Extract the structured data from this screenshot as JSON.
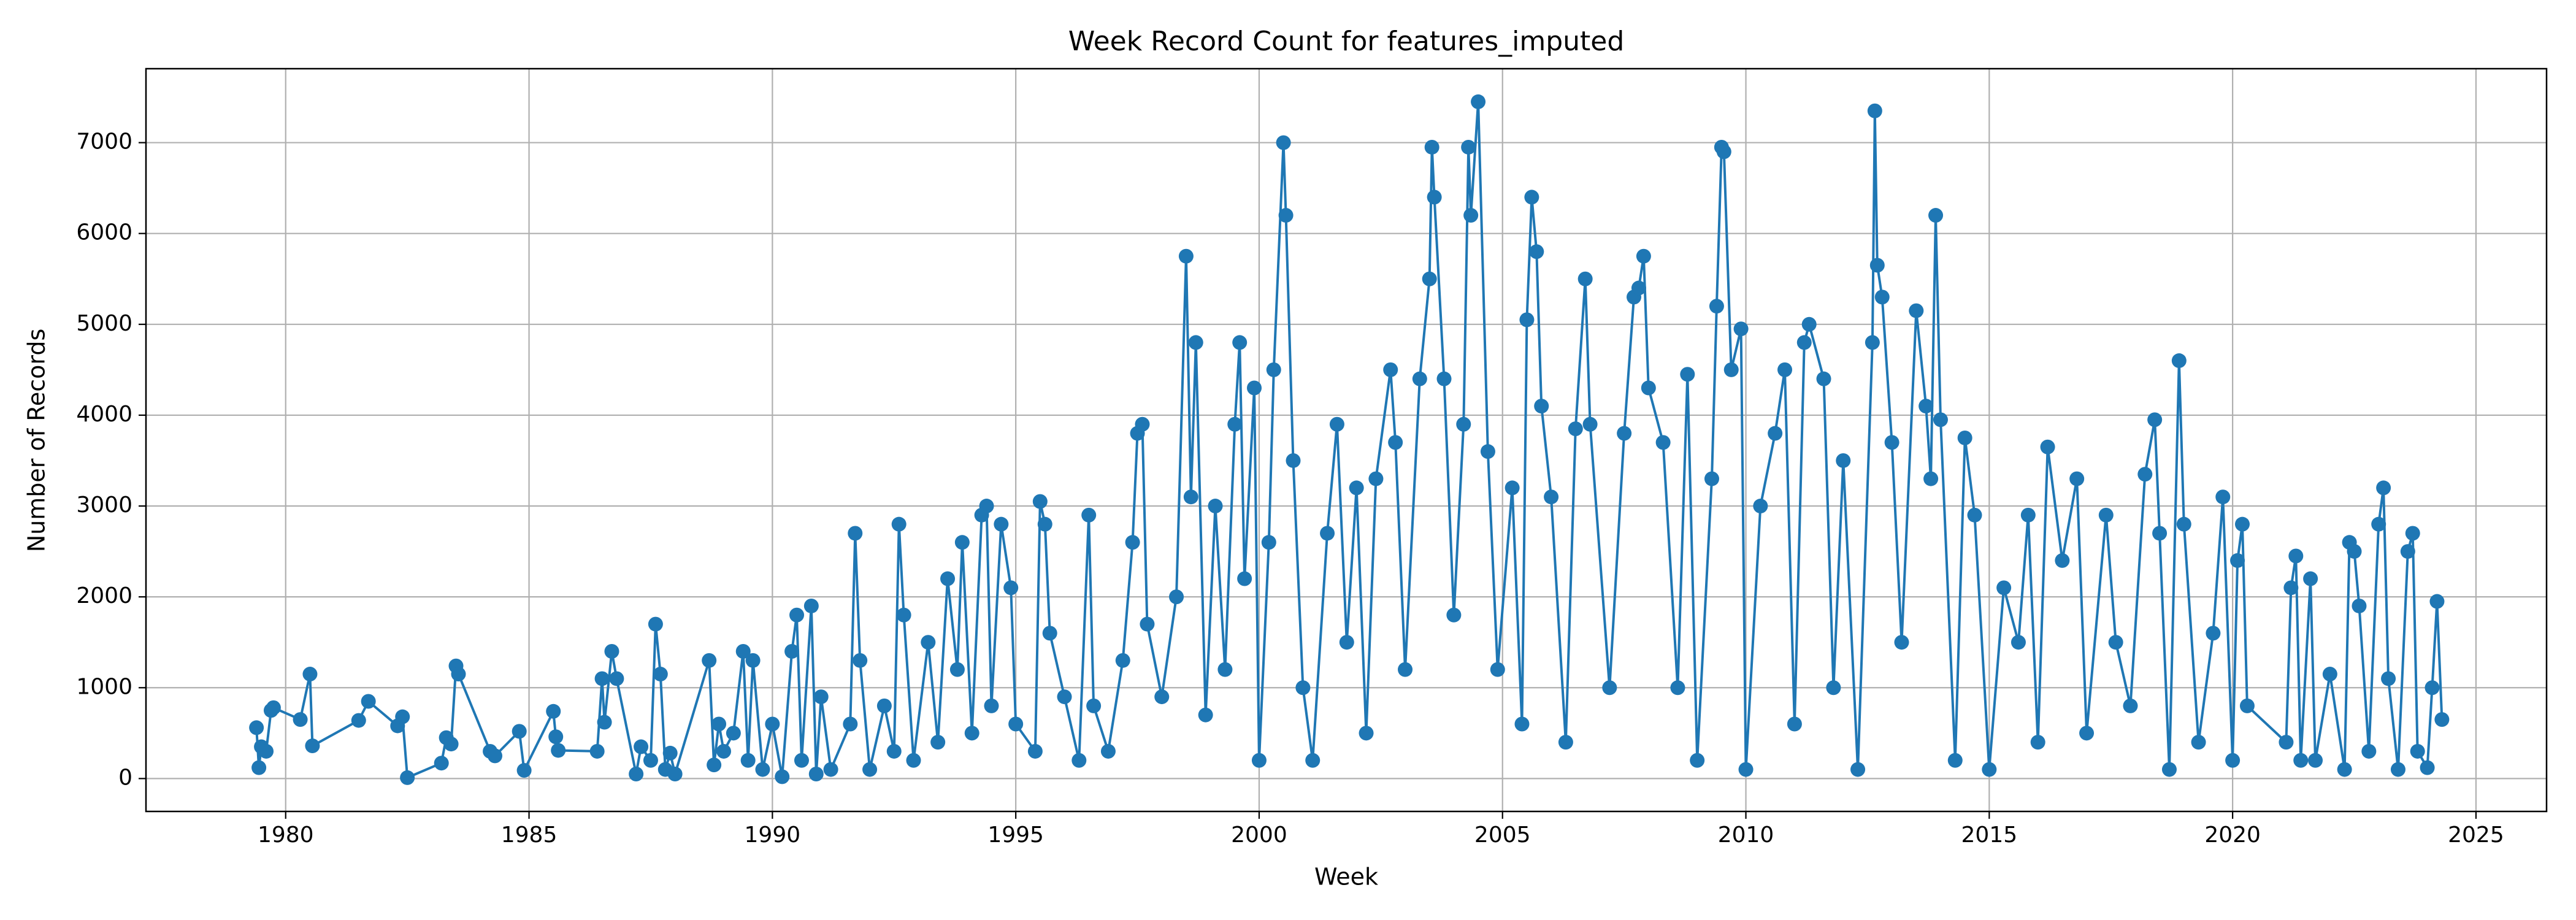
{
  "chart_data": {
    "type": "line",
    "title": "Week Record Count for features_imputed",
    "xlabel": "Week",
    "ylabel": "Number of Records",
    "color": "#1f77b4",
    "grid": true,
    "xlim": [
      1977.13,
      2026.45
    ],
    "ylim": [
      -362,
      7814
    ],
    "xticks": [
      1980,
      1985,
      1990,
      1995,
      2000,
      2005,
      2010,
      2015,
      2020,
      2025
    ],
    "yticks": [
      0,
      1000,
      2000,
      3000,
      4000,
      5000,
      6000,
      7000
    ],
    "x": [
      1979.4,
      1979.45,
      1979.5,
      1979.6,
      1979.7,
      1979.75,
      1980.3,
      1980.5,
      1980.55,
      1981.5,
      1981.7,
      1982.3,
      1982.4,
      1982.5,
      1983.2,
      1983.3,
      1983.4,
      1983.5,
      1983.55,
      1984.2,
      1984.3,
      1984.8,
      1984.9,
      1985.5,
      1985.55,
      1985.6,
      1986.4,
      1986.5,
      1986.55,
      1986.7,
      1986.8,
      1987.2,
      1987.3,
      1987.5,
      1987.6,
      1987.7,
      1987.8,
      1987.9,
      1988.0,
      1988.7,
      1988.8,
      1988.9,
      1989.0,
      1989.2,
      1989.4,
      1989.5,
      1989.6,
      1989.8,
      1990.0,
      1990.2,
      1990.4,
      1990.5,
      1990.6,
      1990.8,
      1990.9,
      1991.0,
      1991.2,
      1991.6,
      1991.7,
      1991.8,
      1992.0,
      1992.3,
      1992.5,
      1992.6,
      1992.7,
      1992.9,
      1993.2,
      1993.4,
      1993.6,
      1993.8,
      1993.9,
      1994.1,
      1994.3,
      1994.4,
      1994.5,
      1994.7,
      1994.9,
      1995.0,
      1995.4,
      1995.5,
      1995.6,
      1995.7,
      1996.0,
      1996.3,
      1996.5,
      1996.6,
      1996.9,
      1997.2,
      1997.4,
      1997.5,
      1997.6,
      1997.7,
      1998.0,
      1998.3,
      1998.5,
      1998.6,
      1998.7,
      1998.9,
      1999.1,
      1999.3,
      1999.5,
      1999.6,
      1999.7,
      1999.9,
      2000.0,
      2000.2,
      2000.3,
      2000.5,
      2000.55,
      2000.7,
      2000.9,
      2001.1,
      2001.4,
      2001.6,
      2001.8,
      2002.0,
      2002.2,
      2002.4,
      2002.7,
      2002.8,
      2003.0,
      2003.3,
      2003.5,
      2003.55,
      2003.6,
      2003.8,
      2004.0,
      2004.2,
      2004.3,
      2004.35,
      2004.5,
      2004.7,
      2004.9,
      2005.2,
      2005.4,
      2005.5,
      2005.6,
      2005.7,
      2005.8,
      2006.0,
      2006.3,
      2006.5,
      2006.7,
      2006.8,
      2007.2,
      2007.5,
      2007.7,
      2007.8,
      2007.9,
      2008.0,
      2008.3,
      2008.6,
      2008.8,
      2009.0,
      2009.3,
      2009.4,
      2009.5,
      2009.55,
      2009.7,
      2009.9,
      2010.0,
      2010.3,
      2010.6,
      2010.8,
      2011.0,
      2011.2,
      2011.3,
      2011.6,
      2011.8,
      2012.0,
      2012.3,
      2012.6,
      2012.65,
      2012.7,
      2012.8,
      2013.0,
      2013.2,
      2013.5,
      2013.7,
      2013.8,
      2013.9,
      2014.0,
      2014.3,
      2014.5,
      2014.7,
      2015.0,
      2015.3,
      2015.6,
      2015.8,
      2016.0,
      2016.2,
      2016.5,
      2016.8,
      2017.0,
      2017.4,
      2017.6,
      2017.9,
      2018.2,
      2018.4,
      2018.5,
      2018.7,
      2018.9,
      2019.0,
      2019.3,
      2019.6,
      2019.8,
      2020.0,
      2020.1,
      2020.2,
      2020.3,
      2021.1,
      2021.2,
      2021.3,
      2021.4,
      2021.6,
      2021.7,
      2022.0,
      2022.3,
      2022.4,
      2022.5,
      2022.6,
      2022.8,
      2023.0,
      2023.1,
      2023.2,
      2023.4,
      2023.6,
      2023.7,
      2023.8,
      2024.0,
      2024.1,
      2024.2,
      2024.3
    ],
    "values": [
      560,
      120,
      350,
      300,
      750,
      780,
      650,
      1150,
      360,
      640,
      850,
      580,
      680,
      10,
      170,
      450,
      380,
      1240,
      1150,
      300,
      250,
      520,
      90,
      740,
      460,
      310,
      300,
      1100,
      620,
      1400,
      1100,
      50,
      350,
      200,
      1700,
      1150,
      100,
      280,
      50,
      1300,
      150,
      600,
      300,
      500,
      1400,
      200,
      1300,
      100,
      600,
      20,
      1400,
      1800,
      200,
      1900,
      50,
      900,
      100,
      600,
      2700,
      1300,
      100,
      800,
      300,
      2800,
      1800,
      200,
      1500,
      400,
      2200,
      1200,
      2600,
      500,
      2900,
      3000,
      800,
      2800,
      2100,
      600,
      300,
      3050,
      2800,
      1600,
      900,
      200,
      2900,
      800,
      300,
      1300,
      2600,
      3800,
      3900,
      1700,
      900,
      2000,
      5750,
      3100,
      4800,
      700,
      3000,
      1200,
      3900,
      4800,
      2200,
      4300,
      200,
      2600,
      4500,
      7000,
      6200,
      3500,
      1000,
      200,
      2700,
      3900,
      1500,
      3200,
      500,
      3300,
      4500,
      3700,
      1200,
      4400,
      5500,
      6950,
      6400,
      4400,
      1800,
      3900,
      6950,
      6200,
      7450,
      3600,
      1200,
      3200,
      600,
      5050,
      6400,
      5800,
      4100,
      3100,
      400,
      3850,
      5500,
      3900,
      1000,
      3800,
      5300,
      5400,
      5750,
      4300,
      3700,
      1000,
      4450,
      200,
      3300,
      5200,
      6950,
      6900,
      4500,
      4950,
      100,
      3000,
      3800,
      4500,
      600,
      4800,
      5000,
      4400,
      1000,
      3500,
      100,
      4800,
      7350,
      5650,
      5300,
      3700,
      1500,
      5150,
      4100,
      3300,
      6200,
      3950,
      200,
      3750,
      2900,
      100,
      2100,
      1500,
      2900,
      400,
      3650,
      2400,
      3300,
      500,
      2900,
      1500,
      800,
      3350,
      3950,
      2700,
      100,
      4600,
      2800,
      400,
      1600,
      3100,
      200,
      2400,
      2800,
      800,
      400,
      2100,
      2450,
      200,
      2200,
      200,
      1150,
      100,
      2600,
      2500,
      1900,
      300,
      2800,
      3200,
      1100,
      100,
      2500,
      2700,
      300,
      120,
      1000,
      1950,
      650
    ]
  }
}
